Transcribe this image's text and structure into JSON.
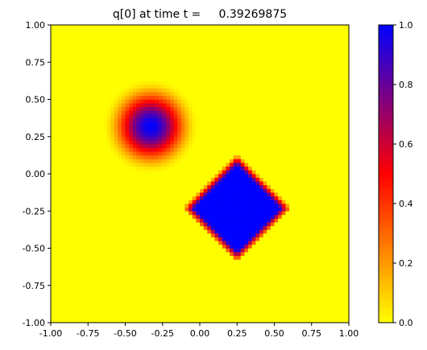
{
  "chart_data": {
    "type": "heatmap",
    "title": "q[0] at time t =     0.39269875",
    "xlabel": "",
    "ylabel": "",
    "xlim": [
      -1.0,
      1.0
    ],
    "ylim": [
      -1.0,
      1.0
    ],
    "grid": false,
    "x_ticks": [
      "-1.00",
      "-0.75",
      "-0.50",
      "-0.25",
      "0.00",
      "0.25",
      "0.50",
      "0.75",
      "1.00"
    ],
    "y_ticks": [
      "-1.00",
      "-0.75",
      "-0.50",
      "-0.25",
      "0.00",
      "0.25",
      "0.50",
      "0.75",
      "1.00"
    ],
    "x_tick_values": [
      -1.0,
      -0.75,
      -0.5,
      -0.25,
      0.0,
      0.25,
      0.5,
      0.75,
      1.0
    ],
    "y_tick_values": [
      -1.0,
      -0.75,
      -0.5,
      -0.25,
      0.0,
      0.25,
      0.5,
      0.75,
      1.0
    ],
    "grid_resolution": 80,
    "background_value": 0.0,
    "features": [
      {
        "shape": "gaussian-hump",
        "center": [
          -0.33,
          0.32
        ],
        "radius": 0.33,
        "peak": 1.0
      },
      {
        "shape": "diamond",
        "center": [
          0.25,
          -0.23
        ],
        "half_diagonal": 0.33,
        "value": 1.0
      }
    ],
    "colorbar": {
      "range": [
        0.0,
        1.0
      ],
      "ticks": [
        "0.0",
        "0.2",
        "0.4",
        "0.6",
        "0.8",
        "1.0"
      ],
      "tick_values": [
        0.0,
        0.2,
        0.4,
        0.6,
        0.8,
        1.0
      ],
      "colormap_stops": [
        {
          "value": 0.0,
          "color": "#ffff00"
        },
        {
          "value": 0.5,
          "color": "#ff0000"
        },
        {
          "value": 1.0,
          "color": "#0000ff"
        }
      ]
    }
  }
}
